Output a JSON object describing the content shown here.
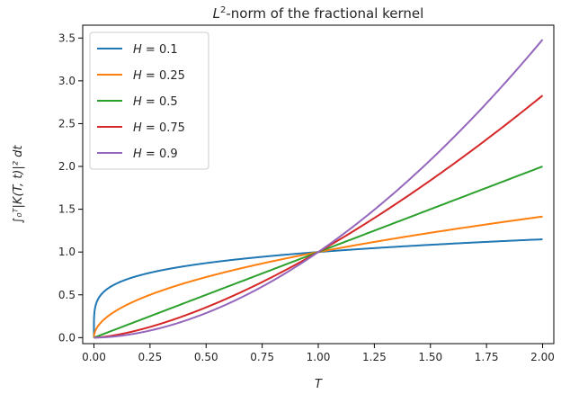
{
  "chart_data": {
    "type": "line",
    "title_prefix": "L",
    "title_sup": "2",
    "title_rest": "-norm of the fractional kernel",
    "xlabel": "T",
    "ylabel": "∫₀ᵀ|K(T, t)|² dt",
    "xlim": [
      -0.05,
      2.05
    ],
    "ylim": [
      -0.07,
      3.65
    ],
    "xticks": [
      0.0,
      0.25,
      0.5,
      0.75,
      1.0,
      1.25,
      1.5,
      1.75,
      2.0
    ],
    "xtick_labels": [
      "0.00",
      "0.25",
      "0.50",
      "0.75",
      "1.00",
      "1.25",
      "1.50",
      "1.75",
      "2.00"
    ],
    "yticks": [
      0.0,
      0.5,
      1.0,
      1.5,
      2.0,
      2.5,
      3.0,
      3.5
    ],
    "ytick_labels": [
      "0.0",
      "0.5",
      "1.0",
      "1.5",
      "2.0",
      "2.5",
      "3.0",
      "3.5"
    ],
    "legend_position": "top-left",
    "x_range": [
      0.0,
      2.0
    ],
    "series": [
      {
        "name": "H = 0.1",
        "legend_var": "H",
        "legend_val": "= 0.1",
        "H": 0.1,
        "color": "#1f77b4"
      },
      {
        "name": "H = 0.25",
        "legend_var": "H",
        "legend_val": "= 0.25",
        "H": 0.25,
        "color": "#ff7f0e"
      },
      {
        "name": "H = 0.5",
        "legend_var": "H",
        "legend_val": "= 0.5",
        "H": 0.5,
        "color": "#2ca02c"
      },
      {
        "name": "H = 0.75",
        "legend_var": "H",
        "legend_val": "= 0.75",
        "H": 0.75,
        "color": "#d62728"
      },
      {
        "name": "H = 0.9",
        "legend_var": "H",
        "legend_val": "= 0.9",
        "H": 0.9,
        "color": "#9467bd"
      }
    ]
  }
}
